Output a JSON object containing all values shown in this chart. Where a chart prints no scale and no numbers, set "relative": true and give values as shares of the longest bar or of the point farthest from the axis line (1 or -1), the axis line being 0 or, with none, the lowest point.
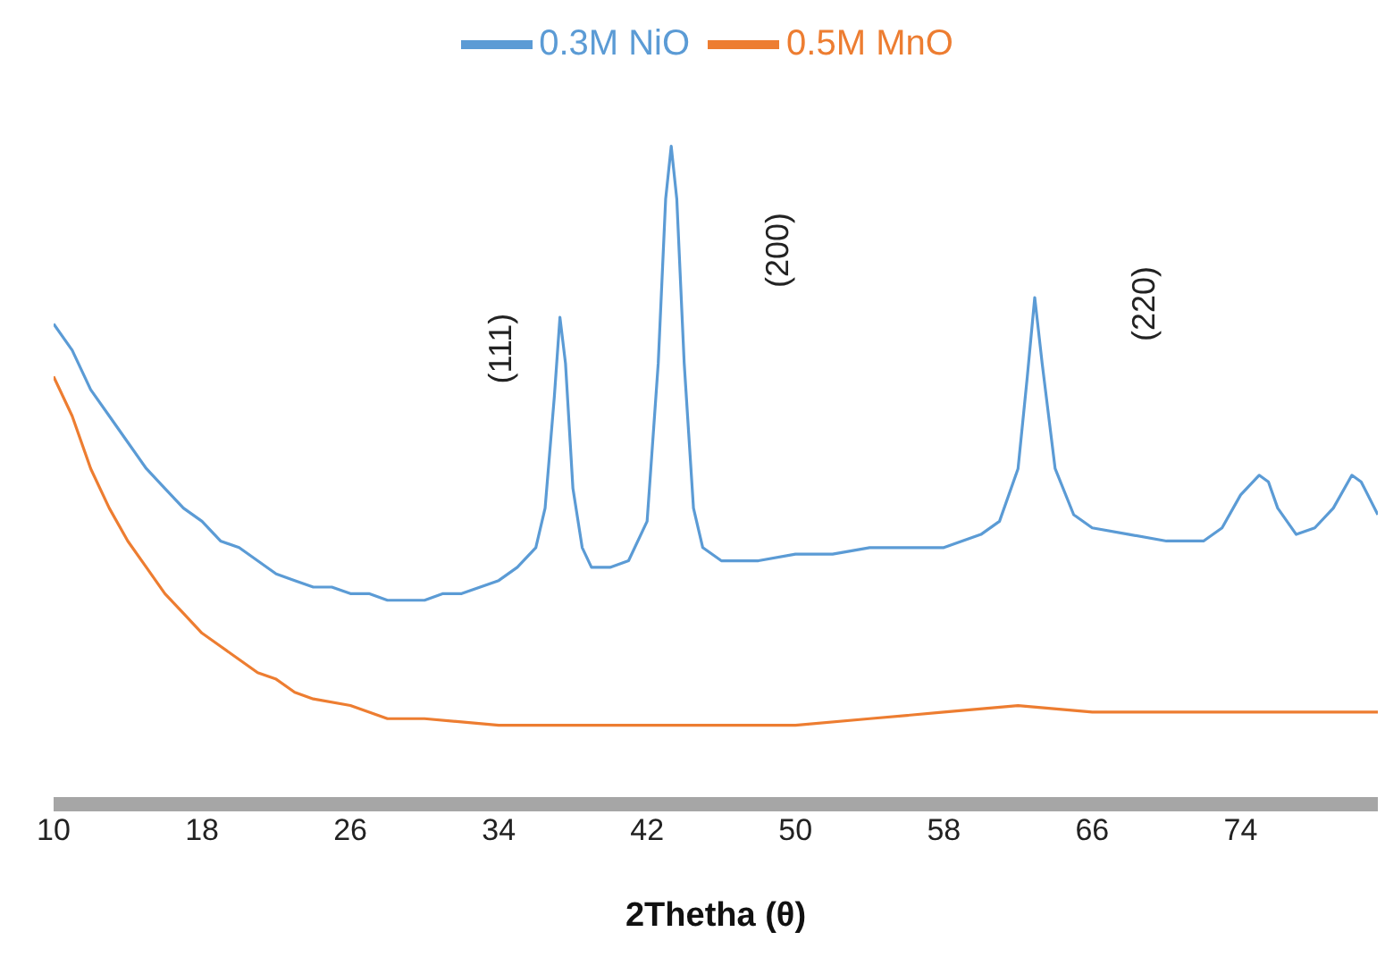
{
  "chart_data": {
    "type": "line",
    "relative": true,
    "xlabel": "2Thetha (θ)",
    "xlim": [
      10,
      81.4
    ],
    "xticks": [
      10,
      18,
      26,
      34,
      42,
      50,
      58,
      66,
      74
    ],
    "legend": "top",
    "grid": false,
    "marker": "none",
    "series": [
      {
        "name": "0.3M NiO",
        "color": "#5b9bd5",
        "x": [
          10,
          11,
          12,
          13,
          14,
          15,
          16,
          17,
          18,
          19,
          20,
          21,
          22,
          23,
          24,
          25,
          26,
          27,
          28,
          29,
          30,
          31,
          32,
          33,
          34,
          35,
          36,
          36.5,
          37,
          37.3,
          37.6,
          38,
          38.5,
          39,
          40,
          41,
          42,
          42.6,
          43,
          43.3,
          43.6,
          44,
          44.5,
          45,
          46,
          47,
          48,
          50,
          52,
          54,
          56,
          58,
          60,
          61,
          62,
          62.5,
          62.9,
          63.3,
          64,
          65,
          66,
          68,
          70,
          72,
          73,
          74,
          75,
          75.5,
          76,
          77,
          78,
          79,
          80,
          80.5,
          81.4
        ],
        "values": [
          0.73,
          0.69,
          0.63,
          0.59,
          0.55,
          0.51,
          0.48,
          0.45,
          0.43,
          0.4,
          0.39,
          0.37,
          0.35,
          0.34,
          0.33,
          0.33,
          0.32,
          0.32,
          0.31,
          0.31,
          0.31,
          0.32,
          0.32,
          0.33,
          0.34,
          0.36,
          0.39,
          0.45,
          0.62,
          0.74,
          0.67,
          0.48,
          0.39,
          0.36,
          0.36,
          0.37,
          0.43,
          0.67,
          0.92,
          1,
          0.92,
          0.67,
          0.45,
          0.39,
          0.37,
          0.37,
          0.37,
          0.38,
          0.38,
          0.39,
          0.39,
          0.39,
          0.41,
          0.43,
          0.51,
          0.65,
          0.77,
          0.67,
          0.51,
          0.44,
          0.42,
          0.41,
          0.4,
          0.4,
          0.42,
          0.47,
          0.5,
          0.49,
          0.45,
          0.41,
          0.42,
          0.45,
          0.5,
          0.49,
          0.44
        ]
      },
      {
        "name": "0.5M MnO",
        "color": "#ed7d31",
        "x": [
          10,
          11,
          12,
          13,
          14,
          15,
          16,
          17,
          18,
          19,
          20,
          21,
          22,
          23,
          24,
          26,
          28,
          30,
          34,
          38,
          42,
          46,
          50,
          54,
          58,
          62,
          66,
          70,
          74,
          78,
          81.4
        ],
        "values": [
          0.65,
          0.59,
          0.51,
          0.45,
          0.4,
          0.36,
          0.32,
          0.29,
          0.26,
          0.24,
          0.22,
          0.2,
          0.19,
          0.17,
          0.16,
          0.15,
          0.13,
          0.13,
          0.12,
          0.12,
          0.12,
          0.12,
          0.12,
          0.13,
          0.14,
          0.15,
          0.14,
          0.14,
          0.14,
          0.14,
          0.14
        ]
      }
    ],
    "annotations": [
      "(111)",
      "(200)",
      "(220)"
    ]
  }
}
